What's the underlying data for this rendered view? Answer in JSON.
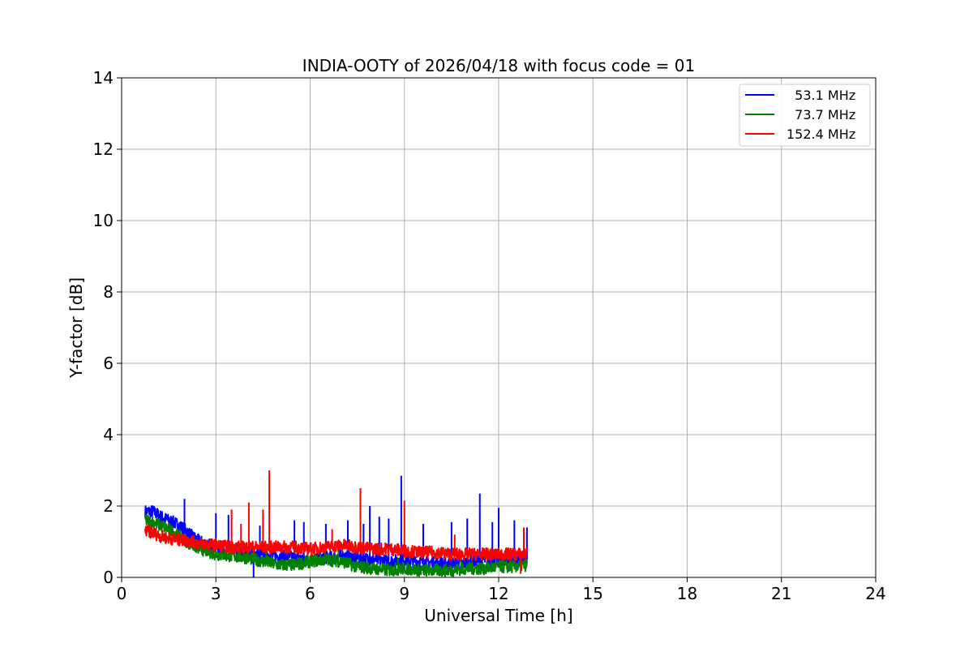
{
  "chart_data": {
    "type": "line",
    "title": "INDIA-OOTY of 2026/04/18 with focus code = 01",
    "xlabel": "Universal Time [h]",
    "ylabel": "Y-factor [dB]",
    "xlim": [
      0,
      24
    ],
    "ylim": [
      0,
      14
    ],
    "xticks": [
      0,
      3,
      6,
      9,
      12,
      15,
      18,
      21,
      24
    ],
    "yticks": [
      0,
      2,
      4,
      6,
      8,
      10,
      12,
      14
    ],
    "grid": true,
    "legend_position": "top-right",
    "series": [
      {
        "name": "  53.1 MHz",
        "color": "#0000ff",
        "x": [
          0.75,
          1.0,
          1.25,
          1.5,
          1.75,
          2.0,
          2.25,
          2.5,
          3.0,
          3.5,
          4.0,
          4.5,
          5.0,
          5.5,
          6.0,
          6.5,
          7.0,
          7.5,
          8.0,
          8.5,
          9.0,
          9.5,
          10.0,
          10.5,
          11.0,
          11.5,
          12.0,
          12.5,
          12.9
        ],
        "y": [
          1.85,
          1.85,
          1.7,
          1.6,
          1.5,
          1.35,
          1.15,
          1.0,
          0.85,
          0.75,
          0.7,
          0.65,
          0.6,
          0.55,
          0.5,
          0.55,
          0.6,
          0.55,
          0.5,
          0.45,
          0.5,
          0.45,
          0.4,
          0.4,
          0.4,
          0.5,
          0.5,
          0.5,
          0.5
        ],
        "spikes": [
          [
            2.0,
            2.2
          ],
          [
            3.0,
            1.8
          ],
          [
            3.4,
            1.75
          ],
          [
            4.2,
            0.0
          ],
          [
            4.4,
            1.45
          ],
          [
            5.5,
            1.6
          ],
          [
            5.8,
            1.55
          ],
          [
            6.5,
            1.5
          ],
          [
            7.2,
            1.6
          ],
          [
            7.7,
            1.5
          ],
          [
            7.9,
            2.0
          ],
          [
            8.2,
            1.7
          ],
          [
            8.5,
            1.65
          ],
          [
            8.9,
            2.85
          ],
          [
            9.6,
            1.5
          ],
          [
            10.5,
            1.55
          ],
          [
            11.0,
            1.65
          ],
          [
            11.4,
            2.35
          ],
          [
            11.8,
            1.55
          ],
          [
            12.0,
            1.95
          ],
          [
            12.5,
            1.6
          ],
          [
            12.9,
            1.4
          ]
        ]
      },
      {
        "name": "  73.7 MHz",
        "color": "#008000",
        "x": [
          0.75,
          1.0,
          1.25,
          1.5,
          1.75,
          2.0,
          2.25,
          2.5,
          3.0,
          3.5,
          4.0,
          4.5,
          5.0,
          5.5,
          6.0,
          6.5,
          7.0,
          7.5,
          8.0,
          8.5,
          9.0,
          9.5,
          10.0,
          10.5,
          11.0,
          11.5,
          12.0,
          12.5,
          12.9
        ],
        "y": [
          1.6,
          1.55,
          1.45,
          1.35,
          1.2,
          1.05,
          0.9,
          0.8,
          0.65,
          0.6,
          0.55,
          0.45,
          0.35,
          0.35,
          0.45,
          0.5,
          0.45,
          0.3,
          0.25,
          0.2,
          0.25,
          0.2,
          0.2,
          0.2,
          0.25,
          0.25,
          0.3,
          0.3,
          0.35
        ],
        "spikes": [
          [
            4.6,
            0.75
          ],
          [
            6.9,
            0.8
          ],
          [
            8.8,
            0.55
          ],
          [
            10.8,
            0.6
          ],
          [
            12.1,
            0.7
          ]
        ]
      },
      {
        "name": "152.4 MHz",
        "color": "#ff0000",
        "x": [
          0.75,
          1.0,
          1.25,
          1.5,
          1.75,
          2.0,
          2.25,
          2.5,
          3.0,
          3.5,
          4.0,
          4.5,
          5.0,
          5.5,
          6.0,
          6.5,
          7.0,
          7.5,
          8.0,
          8.5,
          9.0,
          9.5,
          10.0,
          10.5,
          11.0,
          11.5,
          12.0,
          12.5,
          12.9
        ],
        "y": [
          1.3,
          1.25,
          1.15,
          1.1,
          1.05,
          1.05,
          1.0,
          0.95,
          0.9,
          0.85,
          0.85,
          0.85,
          0.85,
          0.85,
          0.8,
          0.85,
          0.9,
          0.85,
          0.8,
          0.8,
          0.75,
          0.7,
          0.7,
          0.65,
          0.65,
          0.65,
          0.65,
          0.65,
          0.65
        ],
        "spikes": [
          [
            3.5,
            1.9
          ],
          [
            3.8,
            1.5
          ],
          [
            4.05,
            2.1
          ],
          [
            4.5,
            1.9
          ],
          [
            4.7,
            3.0
          ],
          [
            6.7,
            1.35
          ],
          [
            7.6,
            2.5
          ],
          [
            9.0,
            2.15
          ],
          [
            10.6,
            1.2
          ],
          [
            12.7,
            0.1
          ],
          [
            12.8,
            1.4
          ]
        ]
      }
    ]
  }
}
